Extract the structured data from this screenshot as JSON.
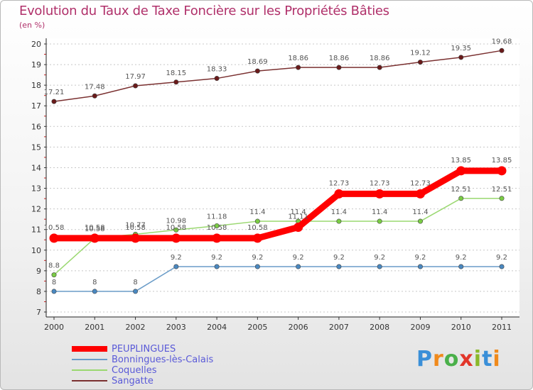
{
  "title": "Evolution du Taux de Taxe Foncière sur les Propriétés Bâties",
  "subtitle": "(en %)",
  "logo": {
    "text": "Proxiti",
    "letter_colors": [
      "#3a8fd8",
      "#f08a1c",
      "#4ab04a",
      "#e2362a",
      "#8ab82a",
      "#3a8fd8",
      "#f08a1c"
    ]
  },
  "chart_data": {
    "type": "line",
    "title": "Evolution du Taux de Taxe Foncière sur les Propriétés Bâties",
    "ylabel": "(en %)",
    "x": [
      "2000",
      "2001",
      "2002",
      "2003",
      "2004",
      "2005",
      "2006",
      "2007",
      "2008",
      "2009",
      "2010",
      "2011"
    ],
    "ylim": [
      7,
      20
    ],
    "yticks": [
      "7",
      "8",
      "9",
      "10",
      "11",
      "12",
      "13",
      "14",
      "15",
      "16",
      "17",
      "18",
      "19",
      "20"
    ],
    "grid": "horizontal dashed",
    "legend_position": "bottom-left",
    "series": [
      {
        "name": "PEUPLINGUES",
        "color": "#ff0000",
        "values": [
          10.58,
          10.58,
          10.58,
          10.58,
          10.58,
          10.58,
          11.11,
          12.73,
          12.73,
          12.73,
          13.85,
          13.85
        ],
        "labels": [
          "10.58",
          "10.58",
          "10.58",
          "10.58",
          "10.58",
          "10.58",
          "11.11",
          "12.73",
          "12.73",
          "12.73",
          "13.85",
          "13.85"
        ]
      },
      {
        "name": "Bonningues-lès-Calais",
        "color": "#6a9cc8",
        "values": [
          8,
          8,
          8,
          9.2,
          9.2,
          9.2,
          9.2,
          9.2,
          9.2,
          9.2,
          9.2,
          9.2
        ],
        "labels": [
          "8",
          "8",
          "8",
          "9.2",
          "9.2",
          "9.2",
          "9.2",
          "9.2",
          "9.2",
          "9.2",
          "9.2",
          "9.2"
        ]
      },
      {
        "name": "Coquelles",
        "color": "#9ad870",
        "values": [
          8.8,
          10.58,
          10.77,
          10.98,
          11.18,
          11.4,
          11.4,
          11.4,
          11.4,
          11.4,
          12.51,
          12.51
        ],
        "labels": [
          "8.8",
          "10.58",
          "10.77",
          "10.98",
          "11.18",
          "11.4",
          "11.4",
          "11.4",
          "11.4",
          "11.4",
          "12.51",
          "12.51"
        ]
      },
      {
        "name": "Sangatte",
        "color": "#7a3030",
        "values": [
          17.21,
          17.48,
          17.97,
          18.15,
          18.33,
          18.69,
          18.86,
          18.86,
          18.86,
          19.12,
          19.35,
          19.68
        ],
        "labels": [
          "17.21",
          "17.48",
          "17.97",
          "18.15",
          "18.33",
          "18.69",
          "18.86",
          "18.86",
          "18.86",
          "19.12",
          "19.35",
          "19.68"
        ]
      }
    ]
  }
}
